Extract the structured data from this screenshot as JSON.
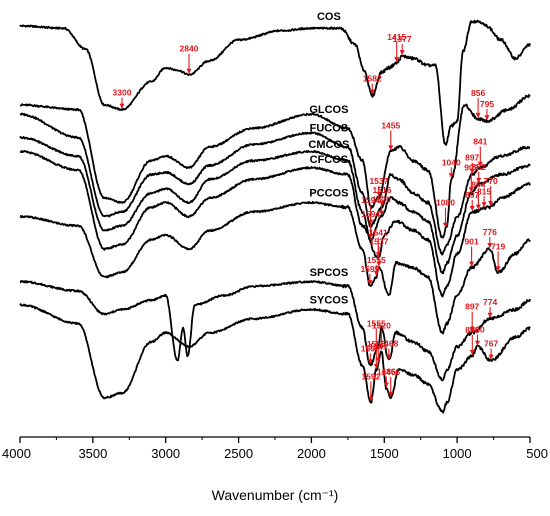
{
  "chart_data": {
    "type": "line",
    "title": "",
    "xlabel": "Wavenumber (cm⁻¹)",
    "ylabel": "",
    "xlim": [
      4000,
      500
    ],
    "x_reversed": true,
    "x_ticks": [
      "4000",
      "3500",
      "3000",
      "2500",
      "2000",
      "1500",
      "1000",
      "500"
    ],
    "grid": false,
    "legend": "none",
    "colors": {
      "curve": "#000000",
      "annotation": "#e3161b"
    },
    "series": [
      {
        "name": "COS",
        "points": [
          [
            4000,
            0.46
          ],
          [
            3700,
            0.45
          ],
          [
            3550,
            0.36
          ],
          [
            3420,
            0.12
          ],
          [
            3300,
            0.1
          ],
          [
            3100,
            0.22
          ],
          [
            3000,
            0.28
          ],
          [
            2920,
            0.27
          ],
          [
            2840,
            0.25
          ],
          [
            2700,
            0.31
          ],
          [
            2500,
            0.4
          ],
          [
            2200,
            0.44
          ],
          [
            2000,
            0.45
          ],
          [
            1800,
            0.45
          ],
          [
            1700,
            0.38
          ],
          [
            1640,
            0.27
          ],
          [
            1582,
            0.16
          ],
          [
            1520,
            0.26
          ],
          [
            1470,
            0.28
          ],
          [
            1415,
            0.3
          ],
          [
            1377,
            0.33
          ],
          [
            1300,
            0.32
          ],
          [
            1200,
            0.29
          ],
          [
            1150,
            0.29
          ],
          [
            1080,
            -0.05
          ],
          [
            1040,
            0.03
          ],
          [
            1000,
            0.05
          ],
          [
            960,
            0.35
          ],
          [
            900,
            0.48
          ],
          [
            850,
            0.48
          ],
          [
            800,
            0.46
          ],
          [
            700,
            0.4
          ],
          [
            600,
            0.32
          ],
          [
            500,
            0.38
          ]
        ]
      },
      {
        "name": "GLCOS",
        "points": [
          [
            4000,
            0.12
          ],
          [
            3600,
            0.1
          ],
          [
            3420,
            -0.28
          ],
          [
            3300,
            -0.3
          ],
          [
            3100,
            -0.12
          ],
          [
            3000,
            -0.1
          ],
          [
            2840,
            -0.15
          ],
          [
            2700,
            -0.06
          ],
          [
            2400,
            0.02
          ],
          [
            2000,
            0.08
          ],
          [
            1750,
            0.02
          ],
          [
            1650,
            -0.12
          ],
          [
            1590,
            -0.32
          ],
          [
            1540,
            -0.28
          ],
          [
            1455,
            -0.08
          ],
          [
            1400,
            -0.06
          ],
          [
            1300,
            -0.12
          ],
          [
            1200,
            -0.16
          ],
          [
            1100,
            -0.45
          ],
          [
            1070,
            -0.4
          ],
          [
            1040,
            -0.2
          ],
          [
            950,
            0.12
          ],
          [
            856,
            0.06
          ],
          [
            795,
            0.05
          ],
          [
            650,
            0.1
          ],
          [
            500,
            0.16
          ]
        ]
      },
      {
        "name": "FUCOS",
        "points": [
          [
            4000,
            0.08
          ],
          [
            3600,
            -0.02
          ],
          [
            3420,
            -0.36
          ],
          [
            3300,
            -0.34
          ],
          [
            3100,
            -0.18
          ],
          [
            3000,
            -0.17
          ],
          [
            2840,
            -0.22
          ],
          [
            2700,
            -0.14
          ],
          [
            2400,
            -0.05
          ],
          [
            2000,
            0.0
          ],
          [
            1750,
            -0.06
          ],
          [
            1650,
            -0.26
          ],
          [
            1594,
            -0.4
          ],
          [
            1516,
            -0.32
          ],
          [
            1455,
            -0.18
          ],
          [
            1400,
            -0.2
          ],
          [
            1300,
            -0.26
          ],
          [
            1200,
            -0.3
          ],
          [
            1100,
            -0.52
          ],
          [
            1070,
            -0.48
          ],
          [
            1000,
            -0.36
          ],
          [
            897,
            -0.18
          ],
          [
            841,
            -0.15
          ],
          [
            700,
            -0.1
          ],
          [
            500,
            -0.06
          ]
        ]
      },
      {
        "name": "CMCOS",
        "points": [
          [
            4000,
            -0.02
          ],
          [
            3600,
            -0.1
          ],
          [
            3420,
            -0.42
          ],
          [
            3300,
            -0.4
          ],
          [
            3100,
            -0.26
          ],
          [
            3000,
            -0.24
          ],
          [
            2840,
            -0.3
          ],
          [
            2700,
            -0.2
          ],
          [
            2400,
            -0.12
          ],
          [
            2000,
            -0.08
          ],
          [
            1750,
            -0.12
          ],
          [
            1650,
            -0.34
          ],
          [
            1594,
            -0.46
          ],
          [
            1520,
            -0.36
          ],
          [
            1460,
            -0.28
          ],
          [
            1400,
            -0.3
          ],
          [
            1300,
            -0.34
          ],
          [
            1200,
            -0.38
          ],
          [
            1100,
            -0.6
          ],
          [
            1070,
            -0.56
          ],
          [
            1000,
            -0.44
          ],
          [
            903,
            -0.26
          ],
          [
            852,
            -0.22
          ],
          [
            700,
            -0.18
          ],
          [
            500,
            -0.14
          ]
        ]
      },
      {
        "name": "CFCOS",
        "points": [
          [
            4000,
            -0.08
          ],
          [
            3600,
            -0.16
          ],
          [
            3420,
            -0.5
          ],
          [
            3300,
            -0.48
          ],
          [
            3100,
            -0.32
          ],
          [
            3000,
            -0.3
          ],
          [
            2840,
            -0.36
          ],
          [
            2700,
            -0.28
          ],
          [
            2400,
            -0.2
          ],
          [
            2000,
            -0.15
          ],
          [
            1750,
            -0.18
          ],
          [
            1650,
            -0.4
          ],
          [
            1541,
            -0.54
          ],
          [
            1500,
            -0.44
          ],
          [
            1420,
            -0.38
          ],
          [
            1300,
            -0.42
          ],
          [
            1200,
            -0.46
          ],
          [
            1100,
            -0.7
          ],
          [
            1070,
            -0.66
          ],
          [
            1000,
            -0.52
          ],
          [
            897,
            -0.34
          ],
          [
            776,
            -0.32
          ],
          [
            700,
            -0.28
          ],
          [
            500,
            -0.22
          ]
        ]
      },
      {
        "name": "PCCOS",
        "points": [
          [
            4000,
            -0.36
          ],
          [
            3600,
            -0.4
          ],
          [
            3420,
            -0.62
          ],
          [
            3300,
            -0.6
          ],
          [
            3100,
            -0.46
          ],
          [
            3000,
            -0.44
          ],
          [
            2840,
            -0.5
          ],
          [
            2700,
            -0.42
          ],
          [
            2400,
            -0.34
          ],
          [
            2000,
            -0.3
          ],
          [
            1750,
            -0.32
          ],
          [
            1650,
            -0.5
          ],
          [
            1596,
            -0.66
          ],
          [
            1555,
            -0.62
          ],
          [
            1537,
            -0.58
          ],
          [
            1468,
            -0.7
          ],
          [
            1420,
            -0.56
          ],
          [
            1300,
            -0.58
          ],
          [
            1200,
            -0.62
          ],
          [
            1100,
            -0.86
          ],
          [
            1070,
            -0.82
          ],
          [
            1000,
            -0.7
          ],
          [
            901,
            -0.58
          ],
          [
            776,
            -0.5
          ],
          [
            719,
            -0.6
          ],
          [
            600,
            -0.52
          ],
          [
            500,
            -0.46
          ]
        ]
      },
      {
        "name": "SPCOS",
        "points": [
          [
            4000,
            -0.64
          ],
          [
            3600,
            -0.68
          ],
          [
            3420,
            -0.78
          ],
          [
            3300,
            -0.76
          ],
          [
            3100,
            -0.72
          ],
          [
            3000,
            -0.7
          ],
          [
            2920,
            -0.98
          ],
          [
            2880,
            -0.84
          ],
          [
            2850,
            -0.96
          ],
          [
            2800,
            -0.74
          ],
          [
            2600,
            -0.7
          ],
          [
            2400,
            -0.66
          ],
          [
            2000,
            -0.64
          ],
          [
            1750,
            -0.66
          ],
          [
            1650,
            -0.84
          ],
          [
            1596,
            -1.0
          ],
          [
            1541,
            -0.92
          ],
          [
            1520,
            -0.84
          ],
          [
            1468,
            -0.98
          ],
          [
            1420,
            -0.86
          ],
          [
            1300,
            -0.9
          ],
          [
            1200,
            -0.94
          ],
          [
            1100,
            -1.06
          ],
          [
            1070,
            -1.02
          ],
          [
            1000,
            -0.92
          ],
          [
            897,
            -0.86
          ],
          [
            774,
            -0.8
          ],
          [
            600,
            -0.76
          ],
          [
            500,
            -0.72
          ]
        ]
      },
      {
        "name": "SYCOS",
        "points": [
          [
            4000,
            -0.74
          ],
          [
            3600,
            -0.82
          ],
          [
            3420,
            -1.14
          ],
          [
            3300,
            -1.12
          ],
          [
            3100,
            -0.9
          ],
          [
            3000,
            -0.86
          ],
          [
            2840,
            -0.92
          ],
          [
            2700,
            -0.86
          ],
          [
            2400,
            -0.8
          ],
          [
            2000,
            -0.76
          ],
          [
            1750,
            -0.78
          ],
          [
            1650,
            -1.0
          ],
          [
            1592,
            -1.16
          ],
          [
            1555,
            -1.02
          ],
          [
            1520,
            -0.94
          ],
          [
            1486,
            -1.1
          ],
          [
            1456,
            -1.14
          ],
          [
            1400,
            -1.02
          ],
          [
            1300,
            -1.04
          ],
          [
            1200,
            -1.08
          ],
          [
            1100,
            -1.2
          ],
          [
            1070,
            -1.16
          ],
          [
            1000,
            -1.02
          ],
          [
            896,
            -0.96
          ],
          [
            860,
            -0.92
          ],
          [
            767,
            -0.98
          ],
          [
            600,
            -0.88
          ],
          [
            500,
            -0.84
          ]
        ]
      }
    ],
    "annotations": [
      {
        "text": "3300",
        "x": 3300
      },
      {
        "text": "2840",
        "x": 2840
      },
      {
        "text": "1582",
        "x": 1582
      },
      {
        "text": "1415",
        "x": 1415
      },
      {
        "text": "1377",
        "x": 1377
      },
      {
        "text": "1080",
        "x": 1080
      },
      {
        "text": "1040",
        "x": 1040
      },
      {
        "text": "1455",
        "x": 1455
      },
      {
        "text": "1537",
        "x": 1537
      },
      {
        "text": "856",
        "x": 856
      },
      {
        "text": "795",
        "x": 795
      },
      {
        "text": "1594",
        "x": 1594
      },
      {
        "text": "897",
        "x": 897
      },
      {
        "text": "841",
        "x": 841
      },
      {
        "text": "1516",
        "x": 1516
      },
      {
        "text": "1594",
        "x": 1594
      },
      {
        "text": "1520",
        "x": 1520
      },
      {
        "text": "903",
        "x": 903
      },
      {
        "text": "852",
        "x": 852
      },
      {
        "text": "1541",
        "x": 1541
      },
      {
        "text": "897",
        "x": 897
      },
      {
        "text": "854",
        "x": 854
      },
      {
        "text": "815",
        "x": 815
      },
      {
        "text": "770",
        "x": 770
      },
      {
        "text": "1599",
        "x": 1599
      },
      {
        "text": "1537",
        "x": 1537
      },
      {
        "text": "1555",
        "x": 1555
      },
      {
        "text": "901",
        "x": 901
      },
      {
        "text": "776",
        "x": 776
      },
      {
        "text": "719",
        "x": 719
      },
      {
        "text": "1596",
        "x": 1596
      },
      {
        "text": "1555",
        "x": 1555
      },
      {
        "text": "1468",
        "x": 1468
      },
      {
        "text": "897",
        "x": 897
      },
      {
        "text": "774",
        "x": 774
      },
      {
        "text": "1520",
        "x": 1520
      },
      {
        "text": "1541",
        "x": 1541
      },
      {
        "text": "1555",
        "x": 1555
      },
      {
        "text": "860",
        "x": 860
      },
      {
        "text": "896",
        "x": 896
      },
      {
        "text": "767",
        "x": 767
      },
      {
        "text": "1592",
        "x": 1592
      },
      {
        "text": "1486",
        "x": 1486
      },
      {
        "text": "1456",
        "x": 1456
      }
    ]
  }
}
